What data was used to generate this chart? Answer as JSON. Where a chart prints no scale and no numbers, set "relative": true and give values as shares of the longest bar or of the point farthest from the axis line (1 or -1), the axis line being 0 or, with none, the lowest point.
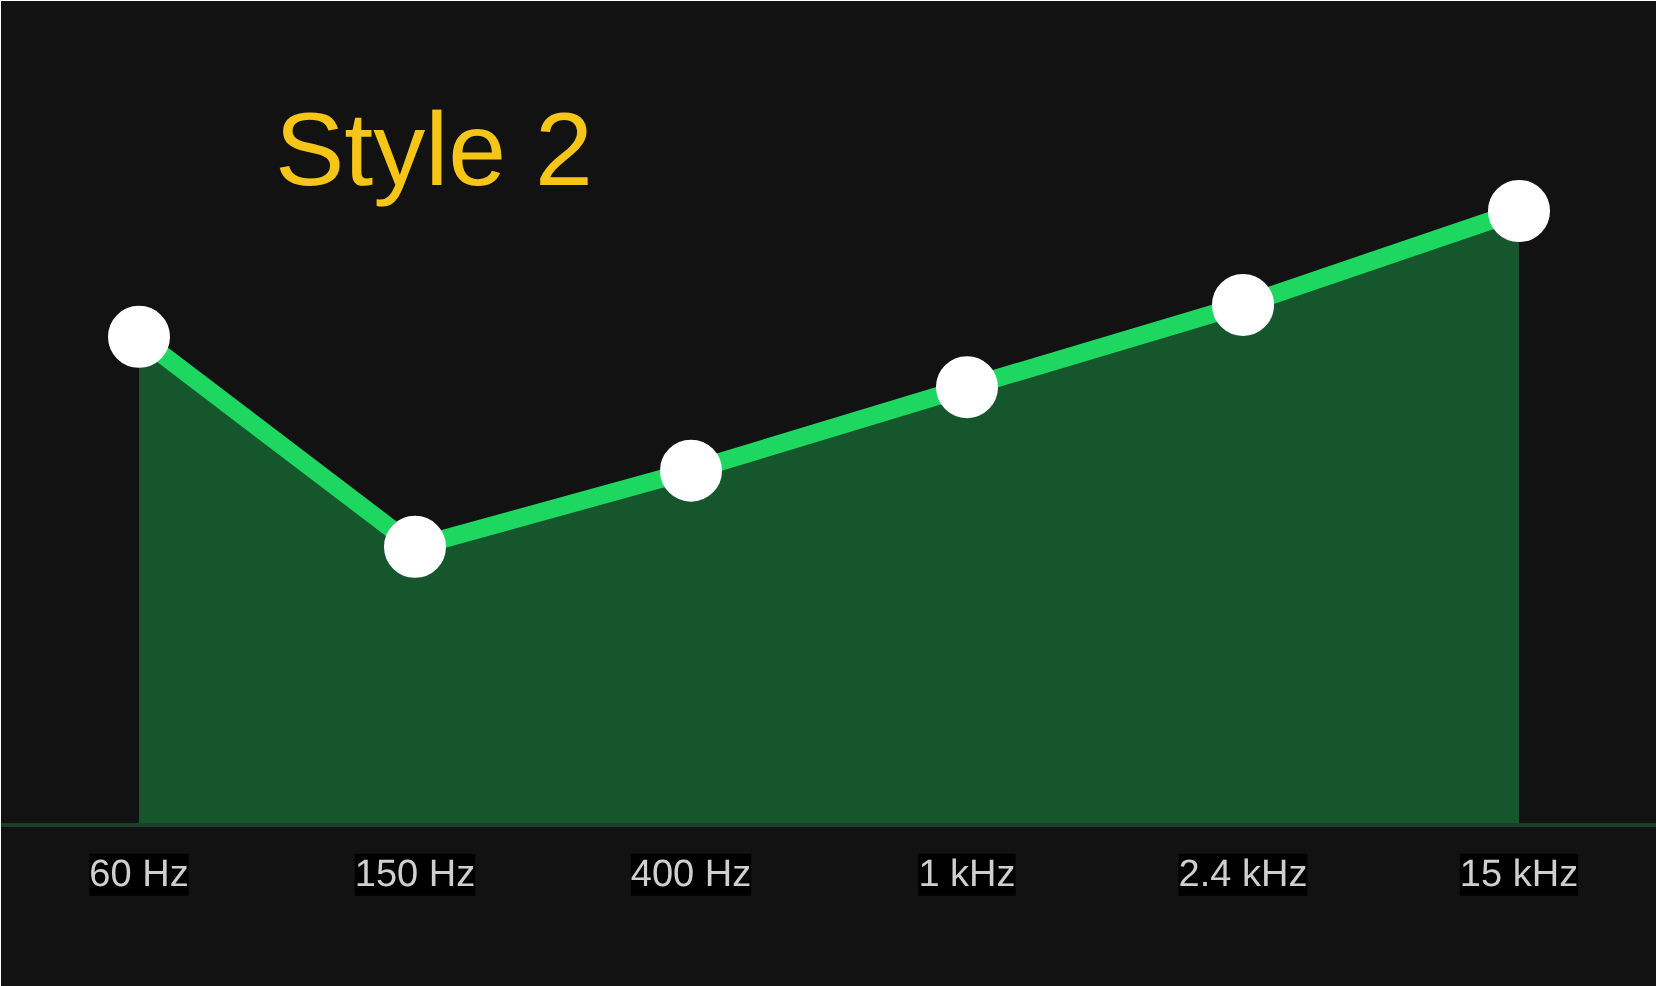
{
  "chart_data": {
    "type": "area",
    "title": "Style 2",
    "relative": true,
    "categories": [
      "60 Hz",
      "150 Hz",
      "400 Hz",
      "1 kHz",
      "2.4 kHz",
      "15 kHz"
    ],
    "series": [
      {
        "color": "#1ed760",
        "values": [
          0.795,
          0.453,
          0.577,
          0.713,
          0.847,
          1.0
        ]
      }
    ],
    "marker": "circle",
    "line_style": "solid"
  }
}
